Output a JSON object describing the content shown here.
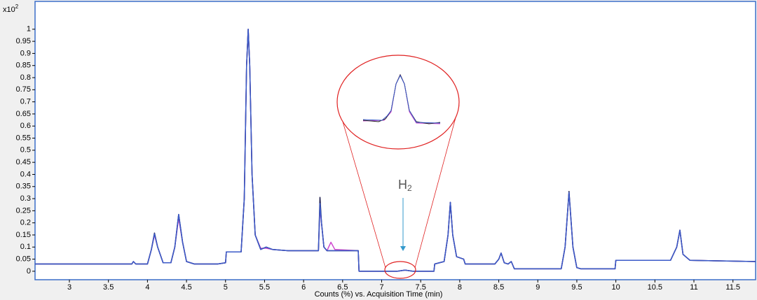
{
  "chart_data": {
    "type": "line",
    "y_multiplier": {
      "base": "x10",
      "exponent": "2"
    },
    "xlabel": "Counts (%) vs. Acquisition Time (min)",
    "annotation": {
      "text": "H",
      "subscript": "2"
    },
    "x": [
      2.56,
      3.8,
      3.82,
      3.85,
      4.0,
      4.05,
      4.09,
      4.13,
      4.2,
      4.3,
      4.35,
      4.4,
      4.45,
      4.5,
      4.6,
      4.9,
      5.0,
      5.01,
      5.2,
      5.24,
      5.27,
      5.29,
      5.31,
      5.34,
      5.38,
      5.45,
      5.52,
      5.6,
      5.8,
      6.19,
      6.21,
      6.23,
      6.26,
      6.3,
      6.35,
      6.4,
      6.7,
      6.71,
      7.2,
      7.3,
      7.4,
      7.67,
      7.68,
      7.8,
      7.85,
      7.88,
      7.91,
      7.96,
      8.05,
      8.07,
      8.45,
      8.5,
      8.53,
      8.57,
      8.62,
      8.66,
      8.7,
      9.3,
      9.35,
      9.4,
      9.45,
      9.5,
      9.55,
      9.99,
      10.0,
      10.7,
      10.78,
      10.82,
      10.86,
      10.95,
      11.79
    ],
    "series": [
      {
        "color": "#d048d0",
        "values": [
          0.03,
          0.03,
          0.04,
          0.03,
          0.03,
          0.09,
          0.15,
          0.1,
          0.035,
          0.035,
          0.1,
          0.22,
          0.12,
          0.04,
          0.03,
          0.03,
          0.035,
          0.08,
          0.08,
          0.3,
          0.85,
          1.0,
          0.85,
          0.4,
          0.15,
          0.095,
          0.095,
          0.09,
          0.085,
          0.085,
          0.26,
          0.2,
          0.1,
          0.085,
          0.12,
          0.09,
          0.085,
          0,
          0,
          0.005,
          0,
          0,
          0.03,
          0.04,
          0.15,
          0.285,
          0.15,
          0.06,
          0.05,
          0.03,
          0.03,
          0.05,
          0.075,
          0.035,
          0.03,
          0.04,
          0.01,
          0.01,
          0.1,
          0.325,
          0.1,
          0.015,
          0.01,
          0.01,
          0.045,
          0.045,
          0.1,
          0.17,
          0.07,
          0.045,
          0.04
        ]
      },
      {
        "color": "#1a1a4a",
        "values": [
          0.03,
          0.03,
          0.04,
          0.03,
          0.03,
          0.09,
          0.158,
          0.1,
          0.035,
          0.035,
          0.1,
          0.235,
          0.12,
          0.04,
          0.03,
          0.03,
          0.035,
          0.08,
          0.08,
          0.3,
          0.85,
          1.0,
          0.85,
          0.4,
          0.15,
          0.09,
          0.1,
          0.09,
          0.085,
          0.085,
          0.305,
          0.2,
          0.1,
          0.085,
          0.085,
          0.085,
          0.085,
          0,
          0,
          0.005,
          0,
          0,
          0.03,
          0.04,
          0.15,
          0.285,
          0.15,
          0.06,
          0.05,
          0.03,
          0.03,
          0.05,
          0.075,
          0.035,
          0.03,
          0.04,
          0.01,
          0.01,
          0.1,
          0.33,
          0.1,
          0.015,
          0.01,
          0.01,
          0.045,
          0.045,
          0.1,
          0.17,
          0.07,
          0.045,
          0.04
        ]
      },
      {
        "color": "#3a5ac8",
        "values": [
          0.03,
          0.03,
          0.04,
          0.03,
          0.03,
          0.09,
          0.155,
          0.1,
          0.035,
          0.035,
          0.1,
          0.235,
          0.12,
          0.04,
          0.03,
          0.03,
          0.035,
          0.08,
          0.08,
          0.3,
          0.85,
          1.0,
          0.85,
          0.4,
          0.15,
          0.09,
          0.1,
          0.09,
          0.085,
          0.085,
          0.28,
          0.2,
          0.1,
          0.085,
          0.085,
          0.085,
          0.085,
          0,
          0,
          0.005,
          0,
          0,
          0.03,
          0.04,
          0.15,
          0.285,
          0.15,
          0.06,
          0.05,
          0.03,
          0.03,
          0.05,
          0.075,
          0.035,
          0.03,
          0.04,
          0.01,
          0.01,
          0.1,
          0.325,
          0.1,
          0.015,
          0.01,
          0.01,
          0.045,
          0.045,
          0.1,
          0.17,
          0.07,
          0.045,
          0.04
        ]
      }
    ],
    "xlim": [
      2.56,
      11.79
    ],
    "xticks": [
      3,
      3.5,
      4,
      4.5,
      5,
      5.5,
      6,
      6.5,
      7,
      7.5,
      8,
      8.5,
      9,
      9.5,
      10,
      10.5,
      11,
      11.5
    ],
    "ylim": [
      -0.035,
      1.115
    ],
    "yticks": [
      0,
      0.05,
      0.1,
      0.15,
      0.2,
      0.25,
      0.3,
      0.35,
      0.4,
      0.45,
      0.5,
      0.55,
      0.6,
      0.65,
      0.7,
      0.75,
      0.8,
      0.85,
      0.9,
      0.95,
      1
    ],
    "grid": false
  }
}
